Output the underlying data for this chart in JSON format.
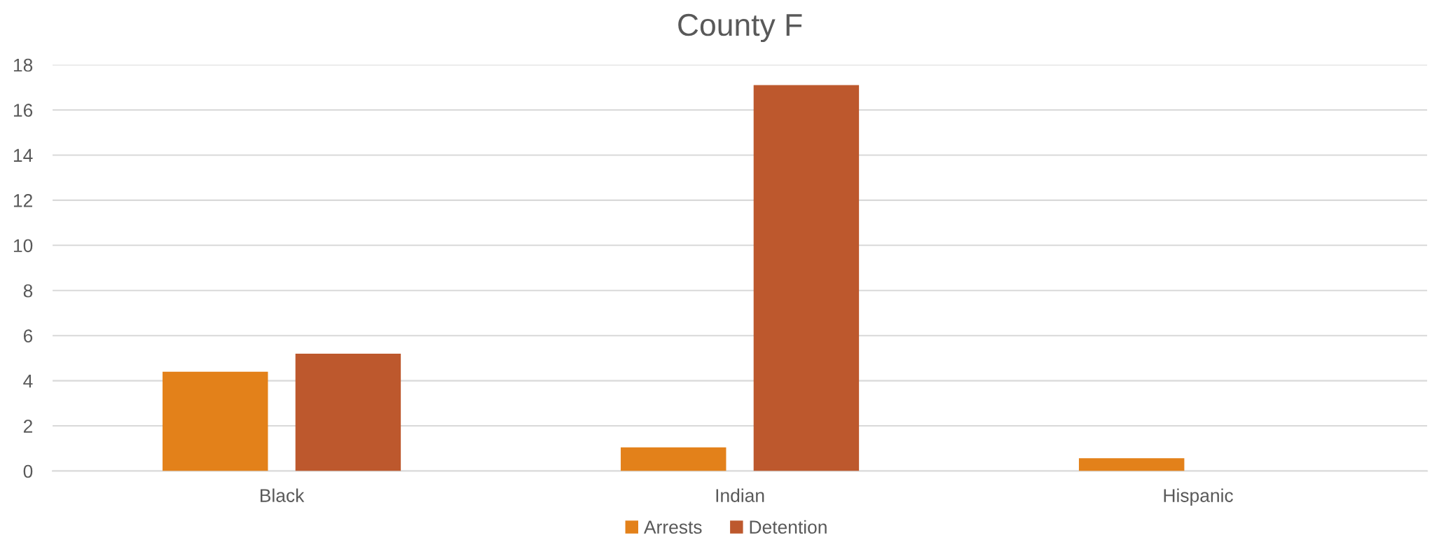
{
  "chart_data": {
    "type": "bar",
    "title": "County F",
    "categories": [
      "Black",
      "Indian",
      "Hispanic"
    ],
    "series": [
      {
        "name": "Arrests",
        "color": "#e3811a",
        "values": [
          4.4,
          1.05,
          0.57
        ]
      },
      {
        "name": "Detention",
        "color": "#bd582d",
        "values": [
          5.2,
          17.1,
          null
        ]
      }
    ],
    "ylim": [
      0,
      18
    ],
    "yticks": [
      0,
      2,
      4,
      6,
      8,
      10,
      12,
      14,
      16,
      18
    ],
    "grid": "y",
    "legend": "bottom"
  }
}
